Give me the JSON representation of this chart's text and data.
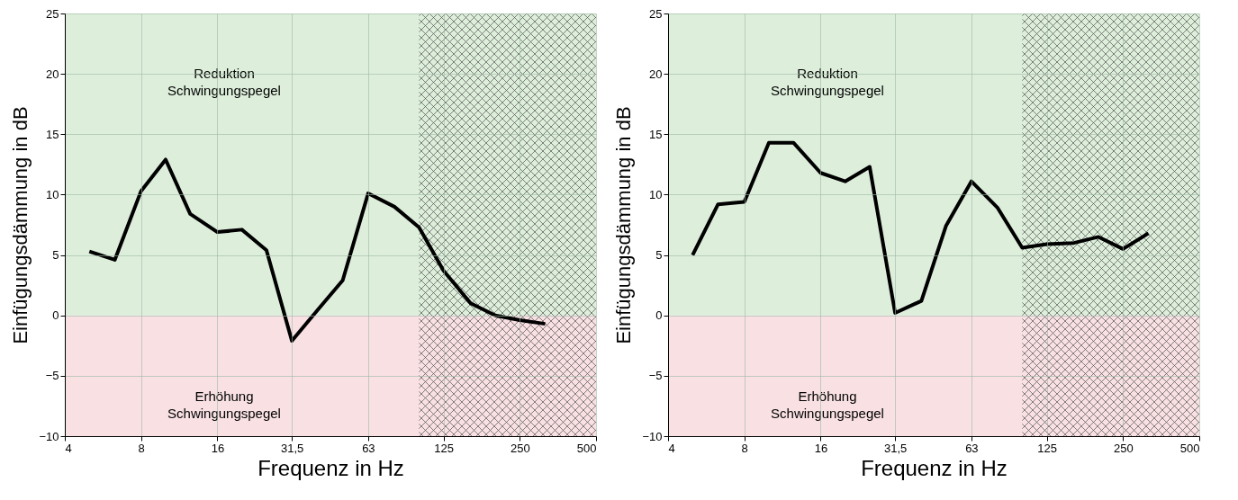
{
  "chart_data": [
    {
      "type": "line",
      "xlabel": "Frequenz in Hz",
      "ylabel": "Einfügungsdämmung in dB",
      "log": "x",
      "grid": true,
      "line_style": "solid",
      "marker": "none",
      "xlim": [
        4,
        500
      ],
      "xticks": [
        4,
        8,
        16,
        {
          "value": 31.5,
          "label": "31,5"
        },
        63,
        125,
        250,
        500
      ],
      "ylim": [
        -10,
        25
      ],
      "yticks": [
        -10,
        -5,
        0,
        5,
        10,
        15,
        20,
        25
      ],
      "x": [
        5,
        6.3,
        8,
        10,
        12.5,
        16,
        20,
        25,
        31.5,
        40,
        50,
        63,
        80,
        100,
        125,
        160,
        200,
        250,
        315
      ],
      "series": [
        {
          "color": "#000000",
          "values": [
            5.3,
            4.6,
            10.3,
            12.9,
            8.4,
            6.9,
            7.1,
            5.4,
            -2.1,
            0.5,
            2.9,
            10.1,
            9.0,
            7.3,
            3.7,
            1.0,
            0.0,
            -0.4,
            -0.7
          ]
        }
      ],
      "bands": [
        {
          "axis": "y",
          "from": 0,
          "to": 25,
          "label": "Reduktion\nSchwingungspegel",
          "color": "#ddefdb"
        },
        {
          "axis": "y",
          "from": -10,
          "to": 0,
          "label": "Erhöhung\nSchwingungspegel",
          "color": "#f8e0e3"
        },
        {
          "axis": "x",
          "from": 100,
          "to": 500,
          "color": "#505050"
        }
      ]
    },
    {
      "type": "line",
      "xlabel": "Frequenz in Hz",
      "ylabel": "Einfügungsdämmung in dB",
      "log": "x",
      "grid": true,
      "line_style": "solid",
      "marker": "none",
      "xlim": [
        4,
        500
      ],
      "xticks": [
        4,
        8,
        16,
        {
          "value": 31.5,
          "label": "31,5"
        },
        63,
        125,
        250,
        500
      ],
      "ylim": [
        -10,
        25
      ],
      "yticks": [
        -10,
        -5,
        0,
        5,
        10,
        15,
        20,
        25
      ],
      "x": [
        5,
        6.3,
        8,
        10,
        12.5,
        16,
        20,
        25,
        31.5,
        40,
        50,
        63,
        80,
        100,
        125,
        160,
        200,
        250,
        315
      ],
      "series": [
        {
          "color": "#000000",
          "values": [
            5.0,
            9.2,
            9.4,
            14.3,
            14.3,
            11.8,
            11.1,
            12.3,
            0.2,
            1.2,
            7.4,
            11.1,
            8.9,
            5.6,
            5.9,
            6.0,
            6.5,
            5.5,
            6.8
          ]
        }
      ],
      "bands": [
        {
          "axis": "y",
          "from": 0,
          "to": 25,
          "label": "Reduktion\nSchwingungspegel",
          "color": "#ddefdb"
        },
        {
          "axis": "y",
          "from": -10,
          "to": 0,
          "label": "Erhöhung\nSchwingungspegel",
          "color": "#f8e0e3"
        },
        {
          "axis": "x",
          "from": 100,
          "to": 500,
          "color": "#505050"
        }
      ]
    }
  ]
}
